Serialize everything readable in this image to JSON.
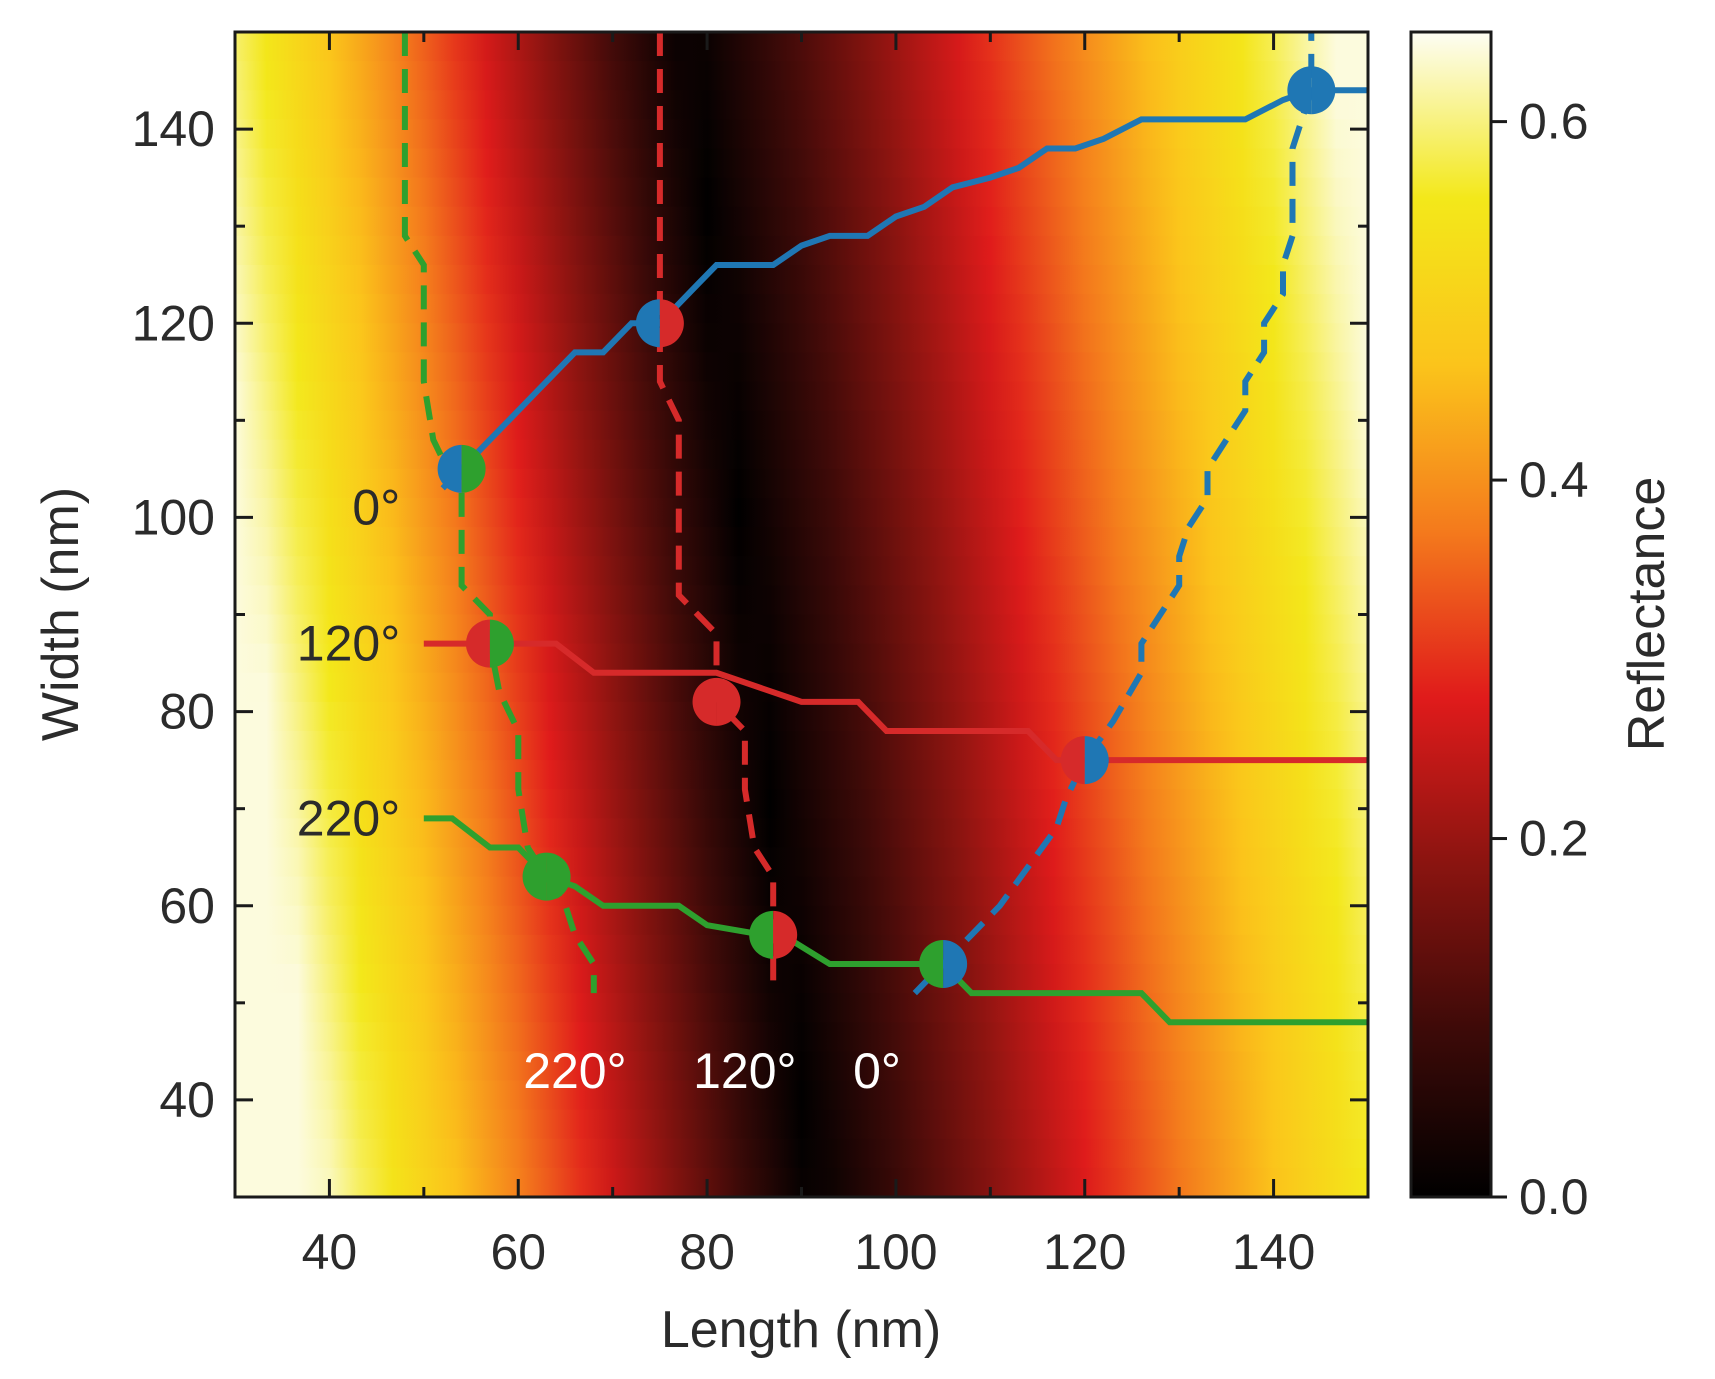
{
  "chart_data": {
    "type": "heatmap",
    "title": "",
    "xlabel": "Length (nm)",
    "ylabel": "Width (nm)",
    "colorbar_label": "Reflectance",
    "xlim": [
      30,
      150
    ],
    "ylim": [
      30,
      150
    ],
    "xticks": [
      40,
      60,
      80,
      100,
      120,
      140
    ],
    "yticks": [
      40,
      60,
      80,
      100,
      120,
      140
    ],
    "colorbar_range": [
      0.0,
      0.65
    ],
    "colorbar_ticks": [
      0.0,
      0.2,
      0.4,
      0.6
    ],
    "colormap": [
      "#000000",
      "#3d0a08",
      "#8a1410",
      "#e01b1b",
      "#f47a1c",
      "#fbc41b",
      "#f3e81a",
      "#fdfdf4"
    ],
    "reflectance_minimum_valley": [
      {
        "width": 150,
        "length": 78
      },
      {
        "width": 30,
        "length": 91
      }
    ],
    "colors": {
      "green": "#2ea02e",
      "red": "#d62a2a",
      "blue": "#1f77b4"
    },
    "series": [
      {
        "name": "0° (solid)",
        "color": "blue",
        "style": "solid",
        "points": [
          [
            52,
            103
          ],
          [
            54,
            105
          ],
          [
            58,
            109
          ],
          [
            62,
            113
          ],
          [
            66,
            117
          ],
          [
            69,
            117
          ],
          [
            72,
            120
          ],
          [
            75,
            120
          ],
          [
            77,
            122
          ],
          [
            79,
            124
          ],
          [
            81,
            126
          ],
          [
            84,
            126
          ],
          [
            87,
            126
          ],
          [
            90,
            128
          ],
          [
            93,
            129
          ],
          [
            97,
            129
          ],
          [
            100,
            131
          ],
          [
            103,
            132
          ],
          [
            106,
            134
          ],
          [
            110,
            135
          ],
          [
            113,
            136
          ],
          [
            116,
            138
          ],
          [
            119,
            138
          ],
          [
            122,
            139
          ],
          [
            126,
            141
          ],
          [
            131,
            141
          ],
          [
            137,
            141
          ],
          [
            141,
            143
          ],
          [
            144,
            144
          ],
          [
            150,
            144
          ]
        ]
      },
      {
        "name": "120° (solid)",
        "color": "red",
        "style": "solid",
        "points": [
          [
            50,
            87
          ],
          [
            57,
            87
          ],
          [
            64,
            87
          ],
          [
            68,
            84
          ],
          [
            81,
            84
          ],
          [
            90,
            81
          ],
          [
            96,
            81
          ],
          [
            99,
            78
          ],
          [
            114,
            78
          ],
          [
            117,
            75
          ],
          [
            120,
            75
          ],
          [
            150,
            75
          ]
        ]
      },
      {
        "name": "220° (solid)",
        "color": "green",
        "style": "solid",
        "points": [
          [
            50,
            69
          ],
          [
            53,
            69
          ],
          [
            57,
            66
          ],
          [
            60,
            66
          ],
          [
            63,
            63
          ],
          [
            66,
            62
          ],
          [
            69,
            60
          ],
          [
            77,
            60
          ],
          [
            80,
            58
          ],
          [
            86,
            57
          ],
          [
            88,
            57
          ],
          [
            93,
            54
          ],
          [
            105,
            54
          ],
          [
            108,
            51
          ],
          [
            126,
            51
          ],
          [
            129,
            48
          ],
          [
            150,
            48
          ]
        ]
      },
      {
        "name": "0° (dashed)",
        "color": "blue",
        "style": "dashed",
        "points": [
          [
            102,
            51
          ],
          [
            105,
            54
          ],
          [
            108,
            57
          ],
          [
            111,
            60
          ],
          [
            114,
            64
          ],
          [
            117,
            68
          ],
          [
            118,
            71
          ],
          [
            120,
            75
          ],
          [
            123,
            79
          ],
          [
            126,
            84
          ],
          [
            126,
            87
          ],
          [
            128,
            90
          ],
          [
            130,
            93
          ],
          [
            130,
            96
          ],
          [
            131,
            99
          ],
          [
            133,
            102
          ],
          [
            133,
            105
          ],
          [
            135,
            108
          ],
          [
            137,
            111
          ],
          [
            137,
            114
          ],
          [
            139,
            117
          ],
          [
            139,
            120
          ],
          [
            141,
            123
          ],
          [
            141,
            126
          ],
          [
            142,
            129
          ],
          [
            142,
            132
          ],
          [
            142,
            135
          ],
          [
            142,
            138
          ],
          [
            143,
            141
          ],
          [
            144,
            144
          ],
          [
            144,
            147
          ],
          [
            144,
            150
          ]
        ]
      },
      {
        "name": "120° (dashed)",
        "color": "red",
        "style": "dashed",
        "points": [
          [
            75,
            150
          ],
          [
            75,
            140
          ],
          [
            75,
            130
          ],
          [
            75,
            120
          ],
          [
            75,
            114
          ],
          [
            76,
            112
          ],
          [
            77,
            110
          ],
          [
            77,
            101
          ],
          [
            77,
            92
          ],
          [
            79,
            90
          ],
          [
            81,
            88
          ],
          [
            81,
            81
          ],
          [
            84,
            78
          ],
          [
            84,
            72
          ],
          [
            85,
            66
          ],
          [
            87,
            63
          ],
          [
            87,
            57
          ],
          [
            87,
            51
          ]
        ]
      },
      {
        "name": "220° (dashed)",
        "color": "green",
        "style": "dashed",
        "points": [
          [
            48,
            150
          ],
          [
            48,
            140
          ],
          [
            48,
            129
          ],
          [
            50,
            126
          ],
          [
            50,
            120
          ],
          [
            50,
            114
          ],
          [
            51,
            108
          ],
          [
            52,
            106
          ],
          [
            54,
            105
          ],
          [
            54,
            99
          ],
          [
            54,
            93
          ],
          [
            57,
            90
          ],
          [
            57,
            87
          ],
          [
            58,
            82
          ],
          [
            60,
            78
          ],
          [
            60,
            72
          ],
          [
            61,
            66
          ],
          [
            63,
            63
          ],
          [
            65,
            60
          ],
          [
            66,
            57
          ],
          [
            68,
            54
          ],
          [
            68,
            51
          ]
        ]
      }
    ],
    "intersections": [
      {
        "length": 54,
        "width": 105,
        "colors": [
          "blue",
          "green"
        ]
      },
      {
        "length": 75,
        "width": 120,
        "colors": [
          "blue",
          "red"
        ]
      },
      {
        "length": 144,
        "width": 144,
        "colors": [
          "blue",
          "blue"
        ]
      },
      {
        "length": 57,
        "width": 87,
        "colors": [
          "red",
          "green"
        ]
      },
      {
        "length": 81,
        "width": 81,
        "colors": [
          "red",
          "red"
        ]
      },
      {
        "length": 120,
        "width": 75,
        "colors": [
          "red",
          "blue"
        ]
      },
      {
        "length": 63,
        "width": 63,
        "colors": [
          "green",
          "green"
        ]
      },
      {
        "length": 87,
        "width": 57,
        "colors": [
          "green",
          "red"
        ]
      },
      {
        "length": 105,
        "width": 54,
        "colors": [
          "green",
          "blue"
        ]
      }
    ],
    "annotations": [
      {
        "text": "0°",
        "color": "#2b2b2b",
        "length": 47.5,
        "width": 101,
        "anchor": "end"
      },
      {
        "text": "120°",
        "color": "#2b2b2b",
        "length": 47.5,
        "width": 87,
        "anchor": "end"
      },
      {
        "text": "220°",
        "color": "#2b2b2b",
        "length": 47.5,
        "width": 69,
        "anchor": "end"
      },
      {
        "text": "220°",
        "color": "#ffffff",
        "length": 66,
        "width": 43,
        "anchor": "middle"
      },
      {
        "text": "120°",
        "color": "#ffffff",
        "length": 84,
        "width": 43,
        "anchor": "middle"
      },
      {
        "text": "0°",
        "color": "#ffffff",
        "length": 98,
        "width": 43,
        "anchor": "middle"
      }
    ]
  }
}
